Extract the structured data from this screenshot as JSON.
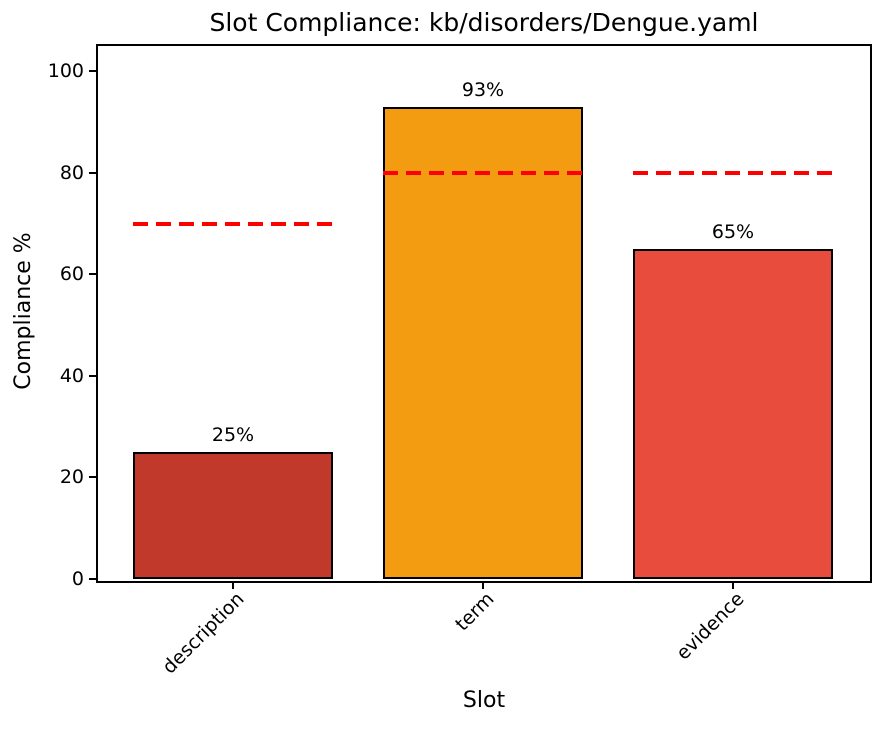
{
  "chart_data": {
    "type": "bar",
    "title": "Slot Compliance: kb/disorders/Dengue.yaml",
    "xlabel": "Slot",
    "ylabel": "Compliance %",
    "categories": [
      "description",
      "term",
      "evidence"
    ],
    "values": [
      25,
      93,
      65
    ],
    "value_labels": [
      "25%",
      "93%",
      "65%"
    ],
    "bar_colors": [
      "#c0392b",
      "#f39c12",
      "#e74c3c"
    ],
    "bar_edge_color": "#000000",
    "thresholds": [
      70,
      80,
      80
    ],
    "threshold_color": "#ff0000",
    "threshold_style": "dashed",
    "ylim": [
      0,
      105
    ],
    "yticks": [
      0,
      20,
      40,
      60,
      80,
      100
    ],
    "grid": false,
    "legend": "none"
  }
}
